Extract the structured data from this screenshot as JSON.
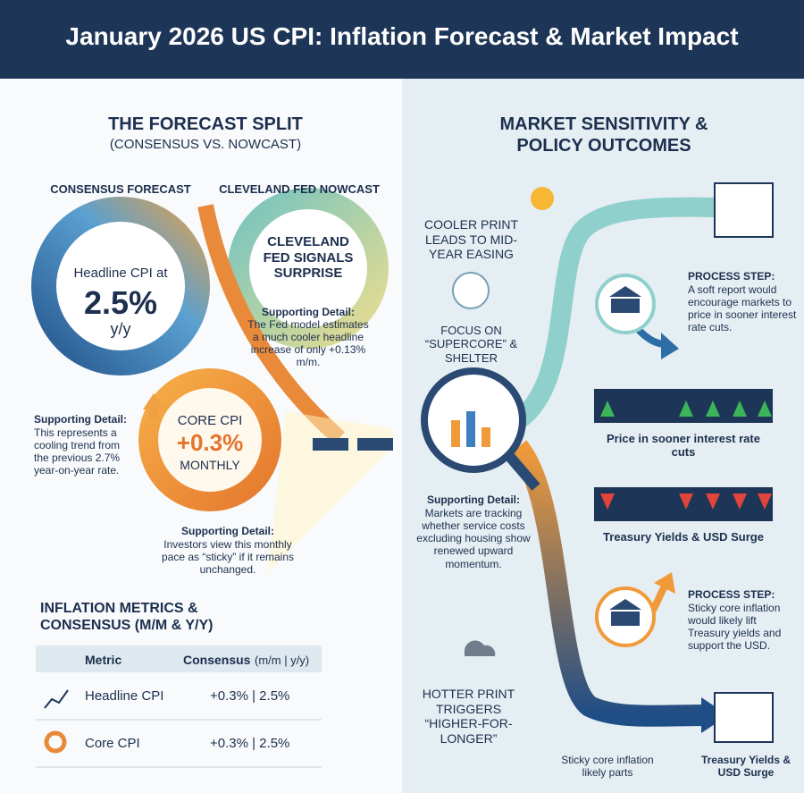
{
  "header": {
    "title": "January 2026 US CPI: Inflation Forecast & Market Impact"
  },
  "left": {
    "title": "THE FORECAST SPLIT",
    "subtitle": "(CONSENSUS VS. NOWCAST)"
  },
  "consensus": {
    "label": "CONSENSUS FORECAST",
    "line1": "Headline CPI at",
    "value": "2.5%",
    "line3": "y/y"
  },
  "nowcast": {
    "label": "CLEVELAND FED NOWCAST",
    "heading": "CLEVELAND FED SIGNALS SURPRISE",
    "detail_label": "Supporting Detail:",
    "detail": "The Fed model estimates a much cooler headline increase of only +0.13% m/m."
  },
  "core": {
    "line1": "CORE CPI",
    "value": "+0.3%",
    "line3": "MONTHLY"
  },
  "trend_detail": {
    "label": "Supporting Detail:",
    "text": "This represents a cooling trend from the previous 2.7% year-on-year rate."
  },
  "core_detail": {
    "label": "Supporting Detail:",
    "text": "Investors view this monthly pace as “sticky” if it remains unchanged."
  },
  "table": {
    "title": "INFLATION METRICS & CONSENSUS (M/M & Y/Y)",
    "header": [
      "Metric",
      "Consensus",
      "(m/m | y/y)"
    ],
    "rows": [
      [
        "Headline CPI",
        "+0.3% | 2.5%"
      ],
      [
        "Core CPI",
        "+0.3% | 2.5%"
      ]
    ]
  },
  "right": {
    "title": "MARKET SENSITIVITY & POLICY OUTCOMES"
  },
  "cooler": {
    "text": "COOLER PRINT LEADS TO MID-YEAR EASING"
  },
  "focus": {
    "text": "FOCUS ON “SUPERCORE” & SHELTER"
  },
  "process1": {
    "label": "PROCESS STEP:",
    "text": "A soft report would encourage markets to price in sooner interest rate cuts."
  },
  "banner1": {
    "label": "Price in sooner interest rate cuts"
  },
  "banner2": {
    "label": "Treasury Yields & USD Surge"
  },
  "market_detail": {
    "label": "Supporting Detail:",
    "text": "Markets are tracking whether service costs excluding housing show renewed upward momentum."
  },
  "process2": {
    "label": "PROCESS STEP:",
    "text": "Sticky core inflation would likely lift Treasury yields and support the USD."
  },
  "hotter": {
    "text": "HOTTER PRINT TRIGGERS “HIGHER-FOR-LONGER”"
  },
  "bottom": {
    "left": "Sticky core inflation likely parts",
    "right": "Treasury Yields & USD Surge"
  }
}
